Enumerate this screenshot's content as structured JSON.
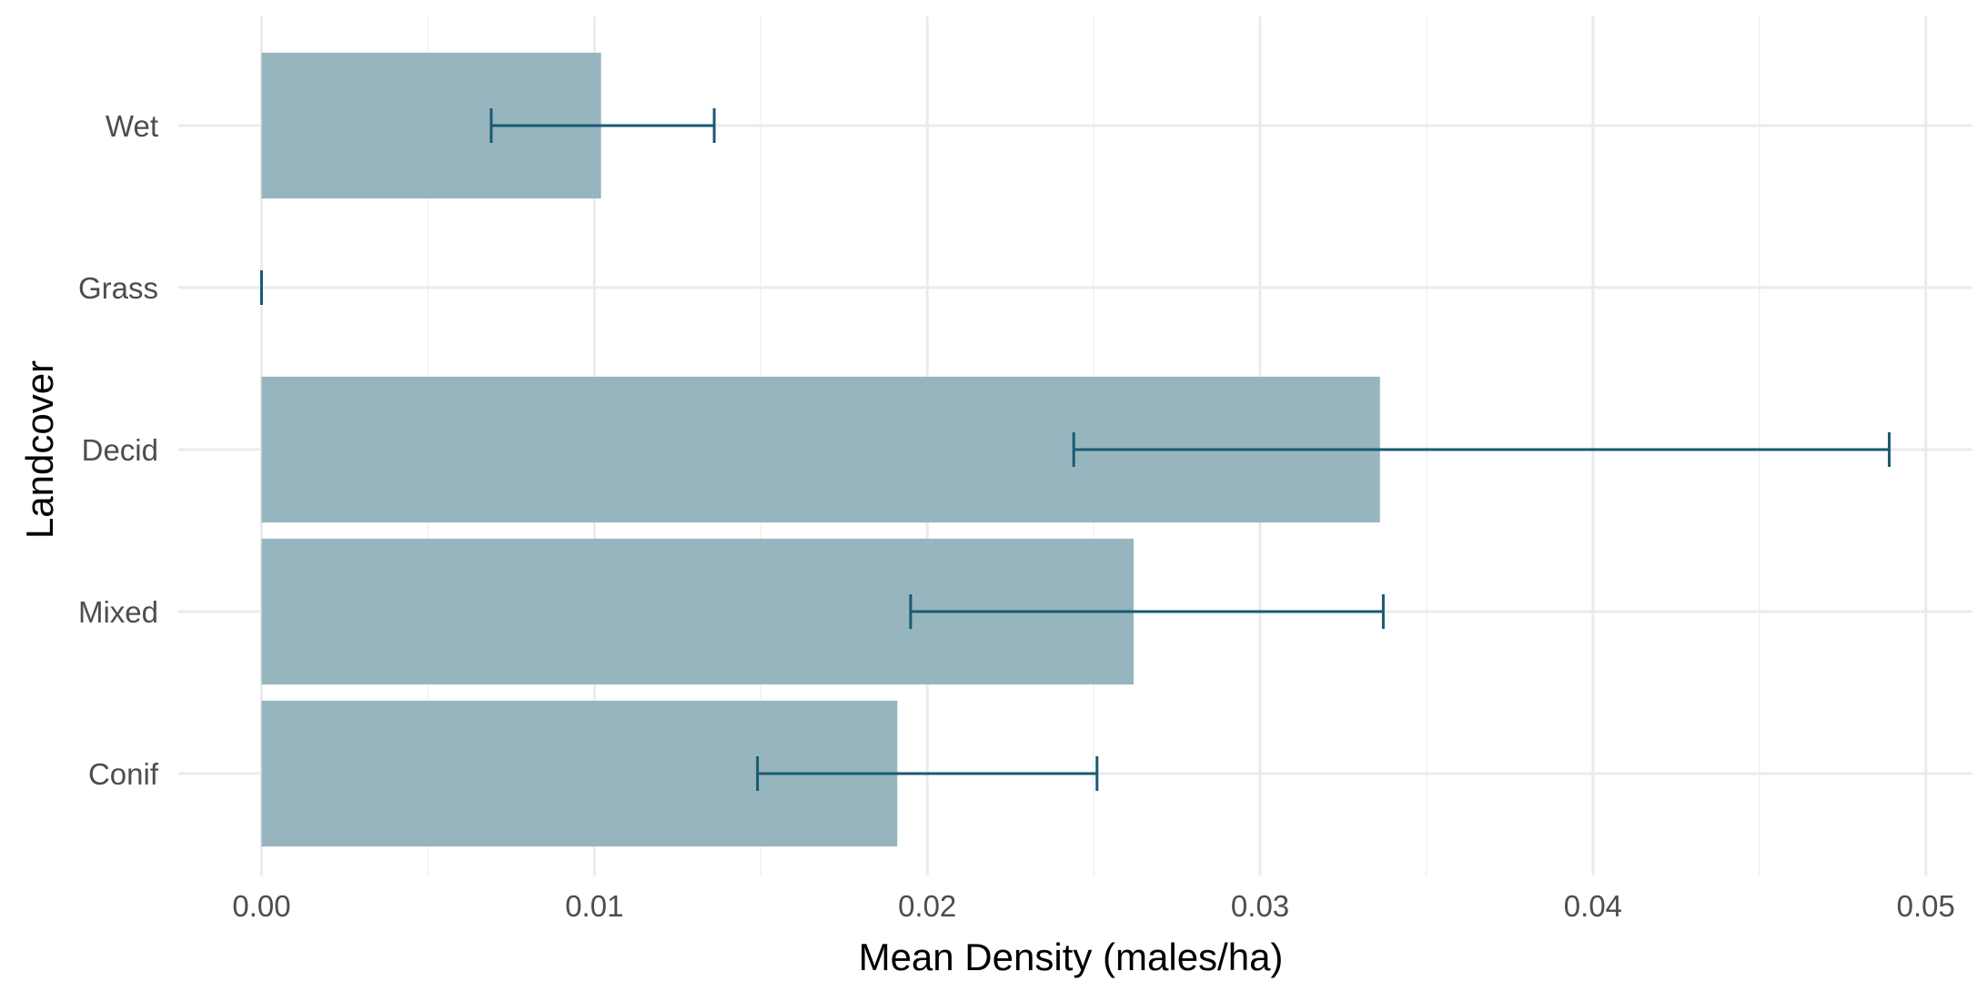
{
  "chart_data": {
    "type": "bar",
    "orientation": "horizontal",
    "title": "",
    "xlabel": "Mean Density (males/ha)",
    "ylabel": "Landcover",
    "categories": [
      "Wet",
      "Grass",
      "Decid",
      "Mixed",
      "Conif"
    ],
    "series": [
      {
        "values": [
          0.0102,
          0.0,
          0.0336,
          0.0262,
          0.0191
        ],
        "error_low": [
          0.0069,
          0.0,
          0.0244,
          0.0195,
          0.0149
        ],
        "error_high": [
          0.0136,
          0.0,
          0.0489,
          0.0337,
          0.0251
        ]
      }
    ],
    "xlim": [
      -0.0025,
      0.0514
    ],
    "x_ticks": [
      0.0,
      0.01,
      0.02,
      0.03,
      0.04,
      0.05
    ],
    "x_tick_labels": [
      "0.00",
      "0.01",
      "0.02",
      "0.03",
      "0.04",
      "0.05"
    ],
    "grid": true,
    "legend": "none",
    "colors": {
      "bar": "#96b5bf",
      "error_bar": "#1a5a72",
      "grid_major": "#ebebeb",
      "grid_minor": "#f2f2f2",
      "tick_label": "#4d4d4d",
      "axis_title": "#000000"
    }
  }
}
